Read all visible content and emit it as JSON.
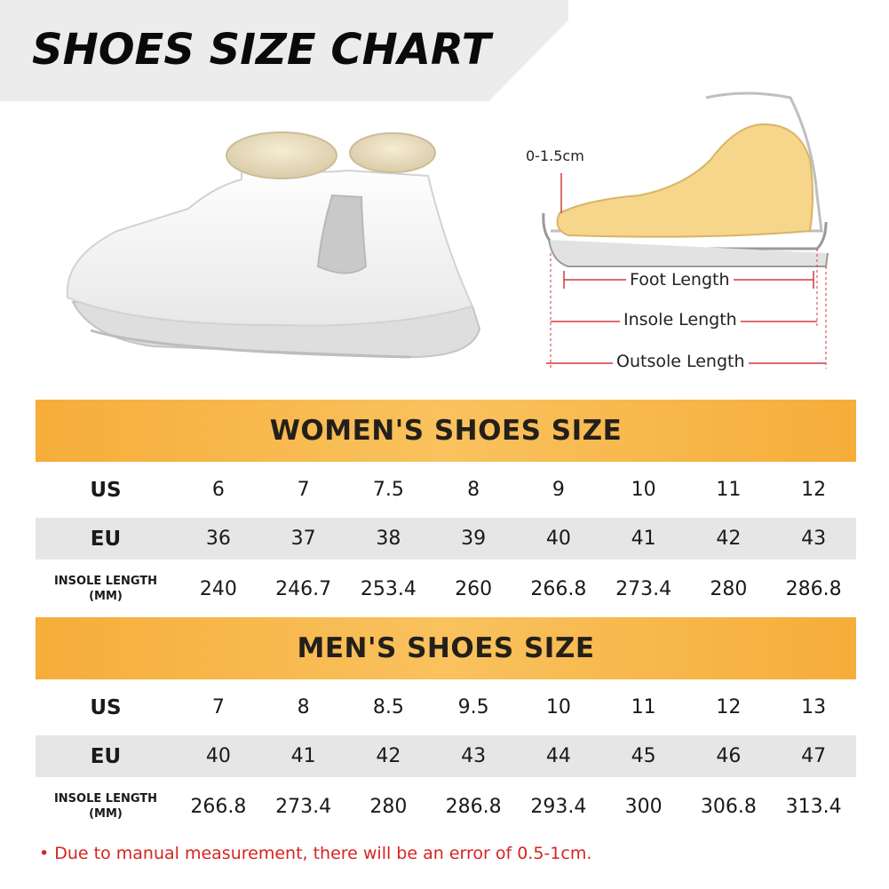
{
  "title": "SHOES SIZE CHART",
  "diagram": {
    "range_label": "0-1.5cm",
    "foot_length": "Foot Length",
    "insole_length": "Insole Length",
    "outsole_length": "Outsole Length"
  },
  "women": {
    "header": "WOMEN'S SHOES SIZE",
    "rows": [
      {
        "label": "US",
        "values": [
          "6",
          "7",
          "7.5",
          "8",
          "9",
          "10",
          "11",
          "12"
        ]
      },
      {
        "label": "EU",
        "values": [
          "36",
          "37",
          "38",
          "39",
          "40",
          "41",
          "42",
          "43"
        ]
      },
      {
        "label": "INSOLE LENGTH (MM)",
        "values": [
          "240",
          "246.7",
          "253.4",
          "260",
          "266.8",
          "273.4",
          "280",
          "286.8"
        ]
      }
    ]
  },
  "men": {
    "header": "MEN'S SHOES SIZE",
    "rows": [
      {
        "label": "US",
        "values": [
          "7",
          "8",
          "8.5",
          "9.5",
          "10",
          "11",
          "12",
          "13"
        ]
      },
      {
        "label": "EU",
        "values": [
          "40",
          "41",
          "42",
          "43",
          "44",
          "45",
          "46",
          "47"
        ]
      },
      {
        "label": "INSOLE LENGTH (MM)",
        "values": [
          "266.8",
          "273.4",
          "280",
          "286.8",
          "293.4",
          "300",
          "306.8",
          "313.4"
        ]
      }
    ]
  },
  "note": "• Due to manual measurement, there will be an error of 0.5-1cm."
}
